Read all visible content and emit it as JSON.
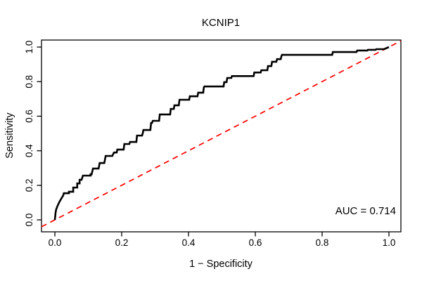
{
  "title": "KCNIP1",
  "annotation": {
    "auc_label": "AUC = 0.714"
  },
  "colors": {
    "background": "#ffffff",
    "roc_curve": "#000000",
    "reference_line": "#ff0000",
    "axis": "#000000",
    "text": "#000000"
  },
  "chart_data": {
    "type": "line",
    "subtype": "roc-curve",
    "title": "KCNIP1",
    "xlabel": "1 − Specificity",
    "ylabel": "Sensitivity",
    "xlim": [
      0.0,
      1.0
    ],
    "ylim": [
      0.0,
      1.0
    ],
    "xticks": [
      0.0,
      0.2,
      0.4,
      0.6,
      0.8,
      1.0
    ],
    "yticks": [
      0.0,
      0.2,
      0.4,
      0.6,
      0.8,
      1.0
    ],
    "xtick_labels": [
      "0.0",
      "0.2",
      "0.4",
      "0.6",
      "0.8",
      "1.0"
    ],
    "ytick_labels": [
      "0.0",
      "0.2",
      "0.4",
      "0.6",
      "0.8",
      "1.0"
    ],
    "grid": false,
    "legend": "none",
    "auc": 0.714,
    "auc_label": "AUC = 0.714",
    "reference_diagonal": {
      "style": "dashed",
      "color": "#ff0000",
      "from": [
        0,
        0
      ],
      "to": [
        1,
        1
      ]
    },
    "series": [
      {
        "name": "ROC curve",
        "color": "#000000",
        "line_width": 2,
        "points": [
          [
            0.0,
            0.0
          ],
          [
            0.002,
            0.041
          ],
          [
            0.004,
            0.061
          ],
          [
            0.008,
            0.081
          ],
          [
            0.013,
            0.102
          ],
          [
            0.019,
            0.122
          ],
          [
            0.025,
            0.142
          ],
          [
            0.027,
            0.154
          ],
          [
            0.042,
            0.154
          ],
          [
            0.042,
            0.163
          ],
          [
            0.055,
            0.163
          ],
          [
            0.055,
            0.187
          ],
          [
            0.067,
            0.187
          ],
          [
            0.067,
            0.211
          ],
          [
            0.074,
            0.211
          ],
          [
            0.074,
            0.232
          ],
          [
            0.08,
            0.232
          ],
          [
            0.084,
            0.256
          ],
          [
            0.107,
            0.256
          ],
          [
            0.107,
            0.264
          ],
          [
            0.11,
            0.264
          ],
          [
            0.114,
            0.297
          ],
          [
            0.131,
            0.297
          ],
          [
            0.134,
            0.329
          ],
          [
            0.148,
            0.329
          ],
          [
            0.152,
            0.37
          ],
          [
            0.172,
            0.37
          ],
          [
            0.177,
            0.39
          ],
          [
            0.185,
            0.39
          ],
          [
            0.187,
            0.407
          ],
          [
            0.206,
            0.407
          ],
          [
            0.208,
            0.439
          ],
          [
            0.223,
            0.439
          ],
          [
            0.225,
            0.451
          ],
          [
            0.244,
            0.451
          ],
          [
            0.246,
            0.488
          ],
          [
            0.261,
            0.488
          ],
          [
            0.263,
            0.5
          ],
          [
            0.265,
            0.52
          ],
          [
            0.286,
            0.52
          ],
          [
            0.288,
            0.561
          ],
          [
            0.291,
            0.561
          ],
          [
            0.293,
            0.573
          ],
          [
            0.312,
            0.573
          ],
          [
            0.314,
            0.61
          ],
          [
            0.345,
            0.61
          ],
          [
            0.347,
            0.642
          ],
          [
            0.356,
            0.642
          ],
          [
            0.358,
            0.663
          ],
          [
            0.371,
            0.663
          ],
          [
            0.373,
            0.695
          ],
          [
            0.402,
            0.695
          ],
          [
            0.404,
            0.715
          ],
          [
            0.427,
            0.715
          ],
          [
            0.429,
            0.736
          ],
          [
            0.444,
            0.736
          ],
          [
            0.446,
            0.768
          ],
          [
            0.448,
            0.772
          ],
          [
            0.505,
            0.772
          ],
          [
            0.507,
            0.797
          ],
          [
            0.514,
            0.797
          ],
          [
            0.516,
            0.821
          ],
          [
            0.528,
            0.821
          ],
          [
            0.53,
            0.832
          ],
          [
            0.595,
            0.832
          ],
          [
            0.597,
            0.853
          ],
          [
            0.616,
            0.853
          ],
          [
            0.618,
            0.866
          ],
          [
            0.636,
            0.866
          ],
          [
            0.638,
            0.89
          ],
          [
            0.648,
            0.89
          ],
          [
            0.65,
            0.915
          ],
          [
            0.663,
            0.915
          ],
          [
            0.665,
            0.93
          ],
          [
            0.676,
            0.93
          ],
          [
            0.678,
            0.947
          ],
          [
            0.68,
            0.955
          ],
          [
            0.83,
            0.955
          ],
          [
            0.832,
            0.971
          ],
          [
            0.903,
            0.971
          ],
          [
            0.905,
            0.98
          ],
          [
            0.935,
            0.98
          ],
          [
            0.937,
            0.984
          ],
          [
            0.96,
            0.984
          ],
          [
            0.962,
            0.988
          ],
          [
            0.985,
            0.988
          ],
          [
            1.0,
            1.0
          ]
        ]
      }
    ]
  }
}
